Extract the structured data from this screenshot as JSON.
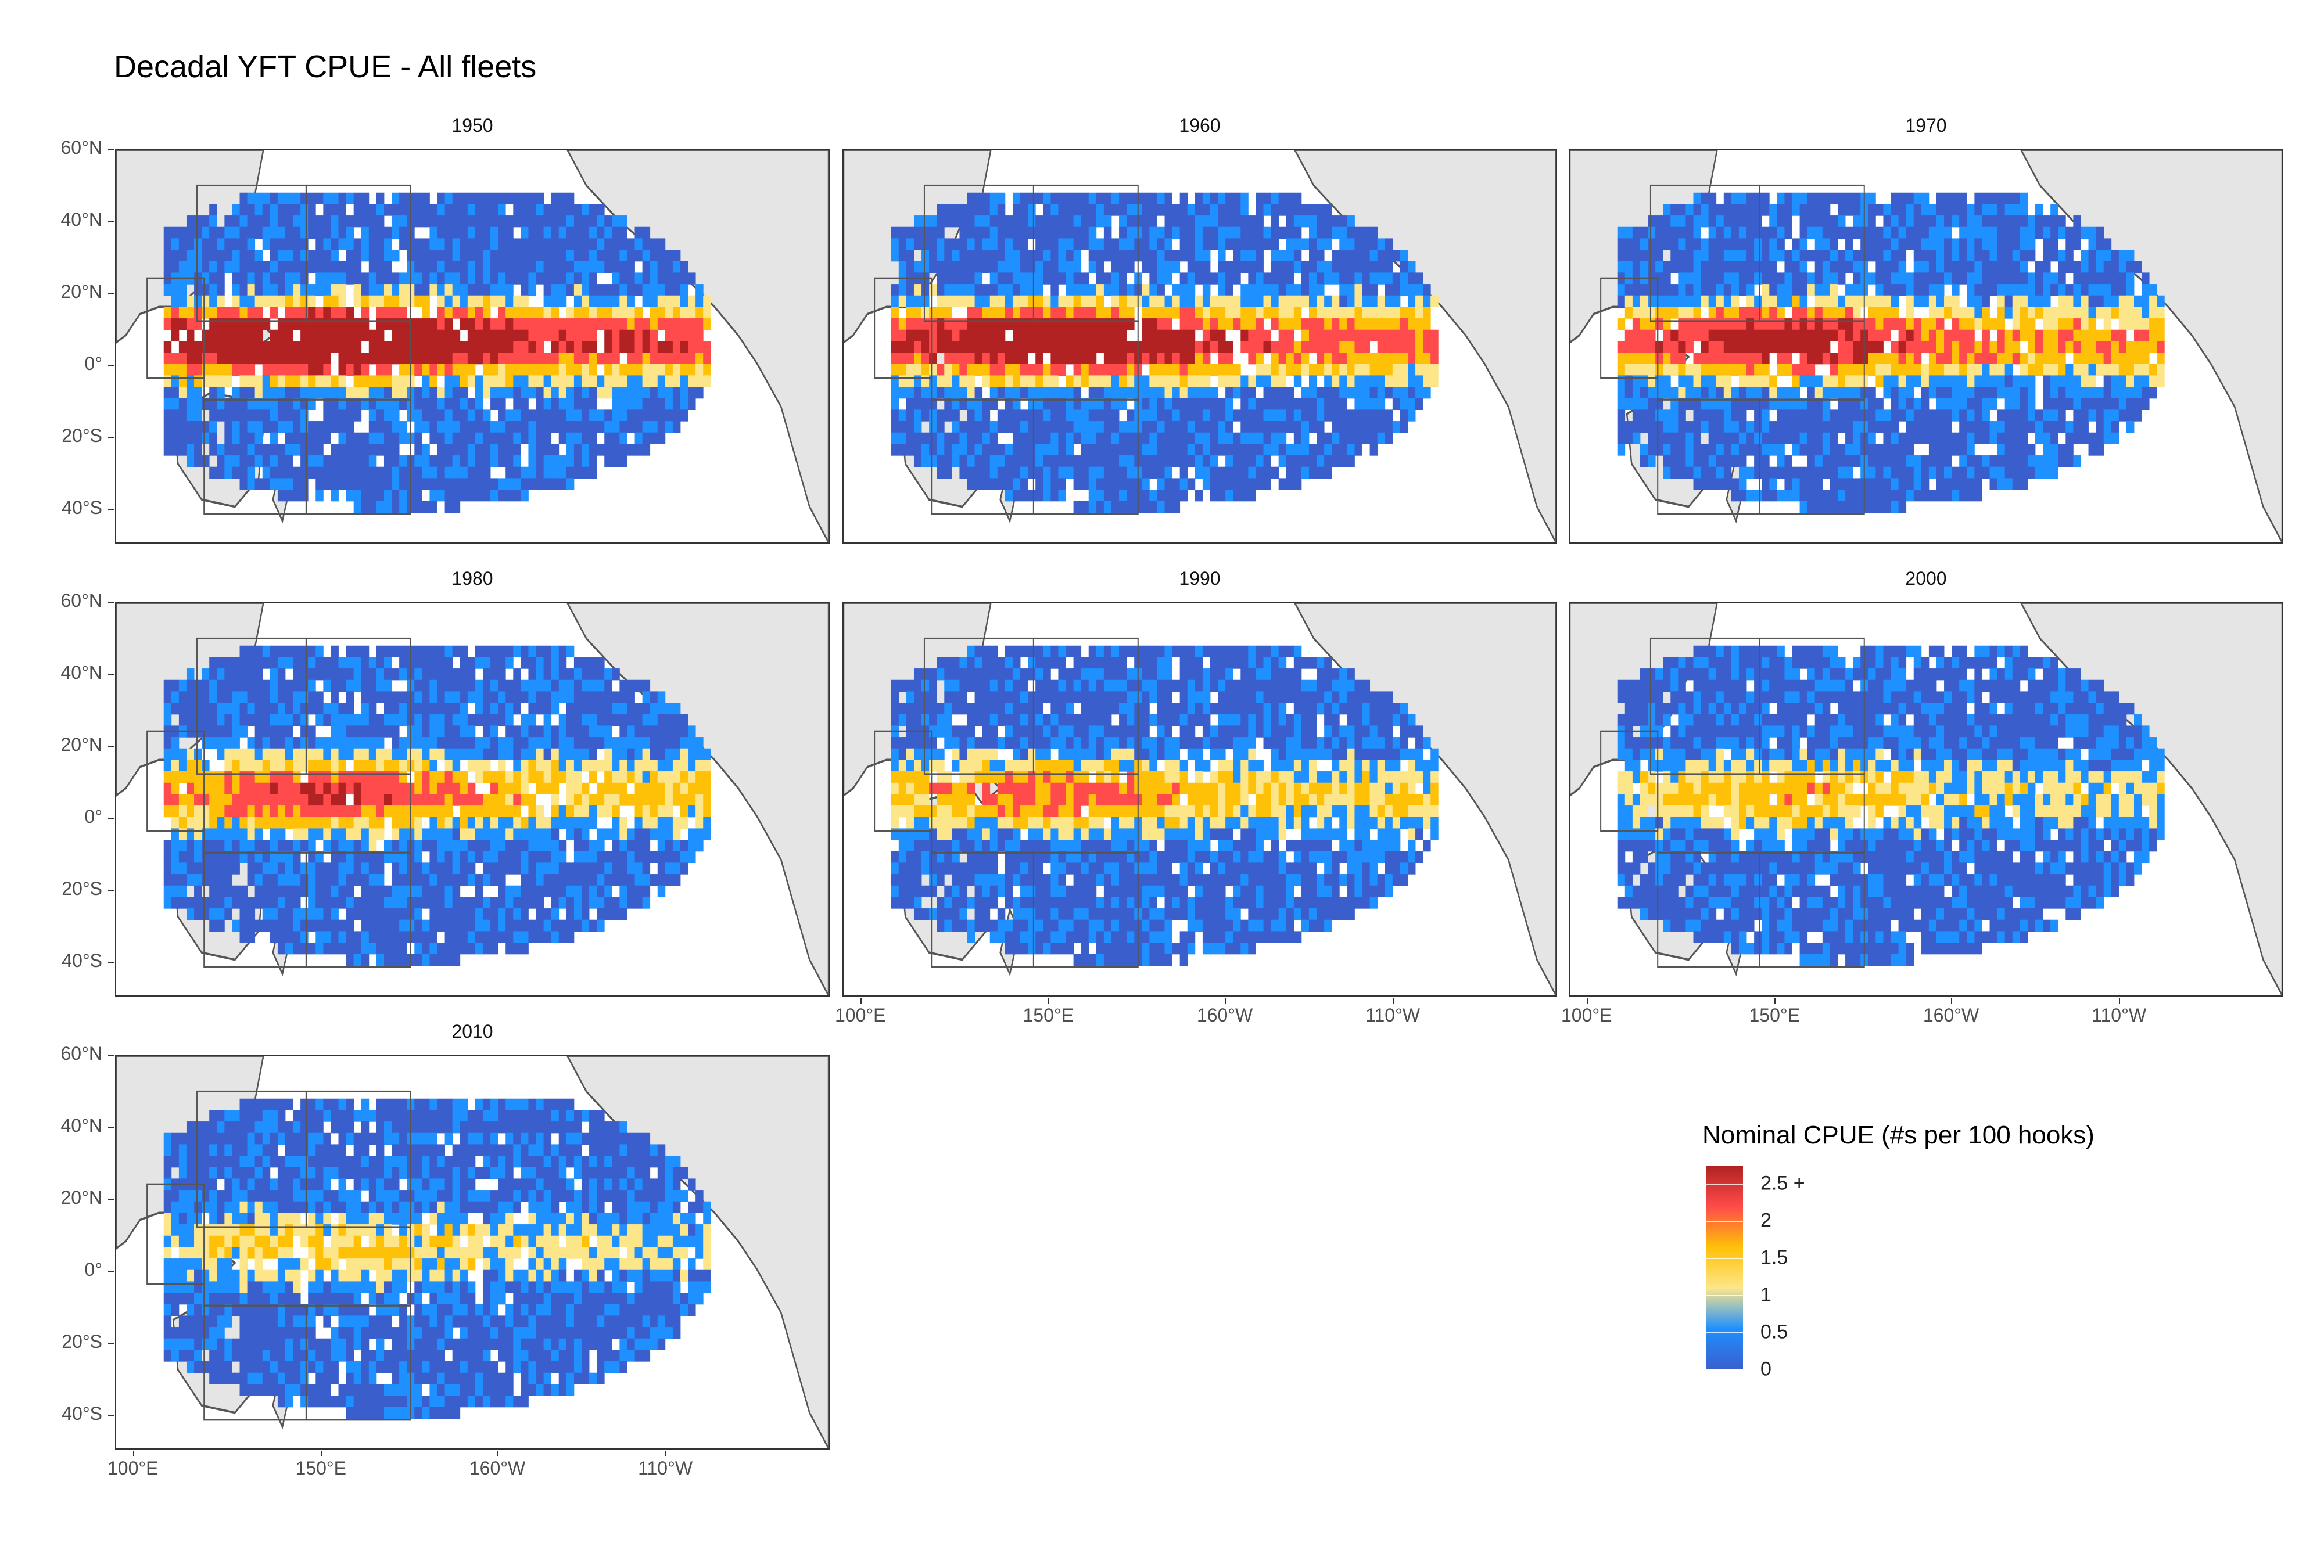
{
  "title": "Decadal YFT CPUE - All fleets",
  "panels": [
    {
      "label": "1950",
      "intensity": 1.0
    },
    {
      "label": "1960",
      "intensity": 0.85
    },
    {
      "label": "1970",
      "intensity": 0.7
    },
    {
      "label": "1980",
      "intensity": 0.55
    },
    {
      "label": "1990",
      "intensity": 0.45
    },
    {
      "label": "2000",
      "intensity": 0.35
    },
    {
      "label": "2010",
      "intensity": 0.3
    }
  ],
  "y_axis_labels": [
    "60°N",
    "40°N",
    "20°N",
    "0°",
    "20°S",
    "40°S"
  ],
  "x_axis_labels": [
    "100°E",
    "150°E",
    "160°W",
    "110°W"
  ],
  "legend": {
    "title": "Nominal CPUE (#s per 100 hooks)",
    "labels": [
      "2.5 +",
      "2",
      "1.5",
      "1",
      "0.5",
      "0"
    ]
  },
  "colors": {
    "land": "#e5e5e5",
    "coast": "#555555",
    "low": "#3a5fcd",
    "mid_low": "#1e90ff",
    "mid": "#fde68a",
    "mid_high": "#ffc107",
    "high": "#ff4b4b",
    "max": "#b22222"
  }
}
